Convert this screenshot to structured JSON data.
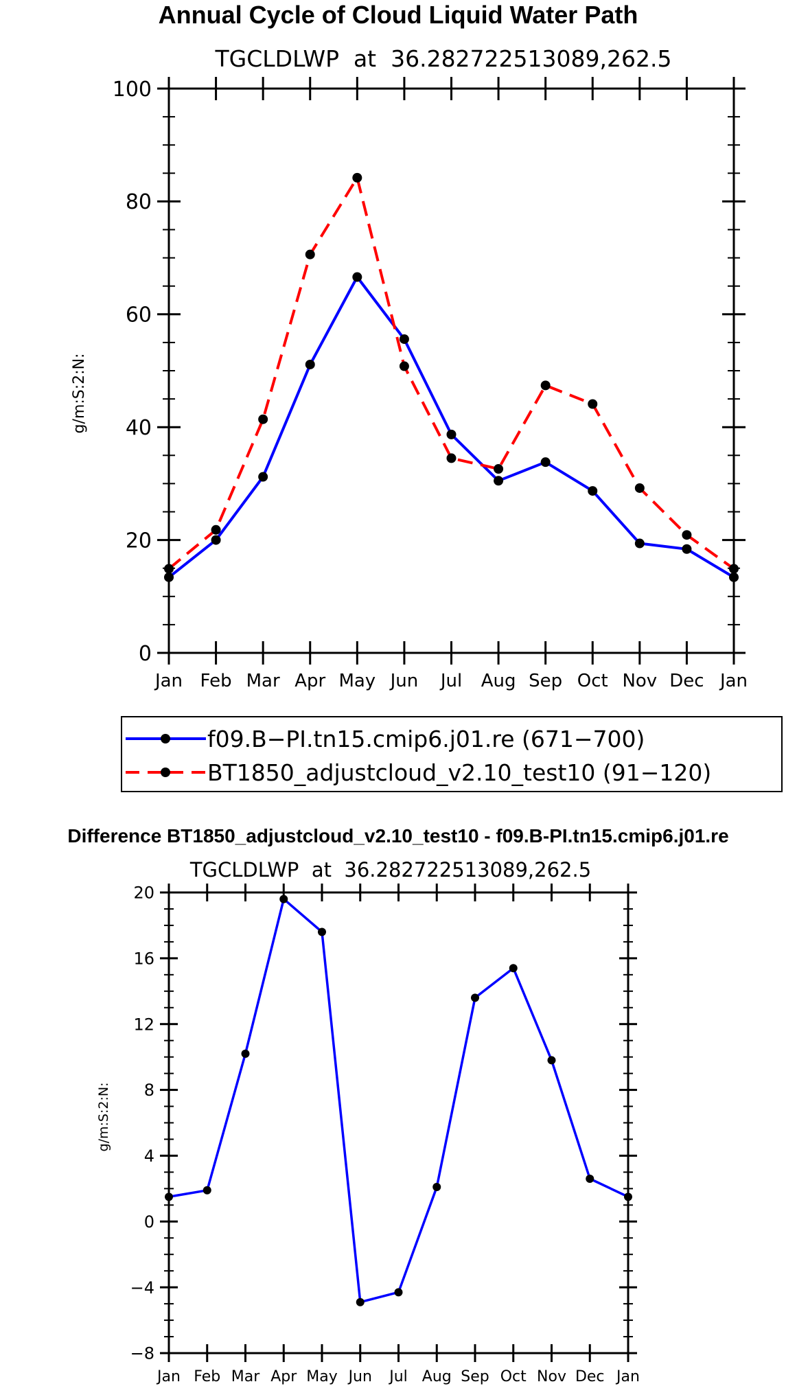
{
  "colors": {
    "series_base": "#0000ff",
    "series_test": "#ff0000",
    "marker": "#000000",
    "axis": "#000000",
    "background": "#ffffff"
  },
  "chart_data": [
    {
      "type": "line",
      "title": "Annual Cycle of Cloud Liquid Water Path",
      "subtitle": "TGCLDLWP  at  36.282722513089,262.5",
      "xlabel": "",
      "ylabel": "g/m:S:2:N:",
      "categories": [
        "Jan",
        "Feb",
        "Mar",
        "Apr",
        "May",
        "Jun",
        "Jul",
        "Aug",
        "Sep",
        "Oct",
        "Nov",
        "Dec",
        "Jan"
      ],
      "ylim": [
        0,
        100
      ],
      "yticks": [
        0,
        20,
        40,
        60,
        80,
        100
      ],
      "ytick_labels": [
        "0",
        "20",
        "40",
        "60",
        "80",
        "100"
      ],
      "series": [
        {
          "name": "f09.B-PI.tn15.cmip6.j01.re",
          "legend_label": "f09.B−PI.tn15.cmip6.j01.re (671−700)",
          "style": "solid",
          "color": "#0000ff",
          "values": [
            13.4,
            20.0,
            31.2,
            51.1,
            66.6,
            55.6,
            38.7,
            30.5,
            33.8,
            28.7,
            19.4,
            18.4,
            13.4
          ]
        },
        {
          "name": "BT1850_adjustcloud_v2.10_test10",
          "legend_label": "BT1850_adjustcloud_v2.10_test10 (91−120)",
          "style": "dashed",
          "color": "#ff0000",
          "values": [
            14.9,
            21.8,
            41.4,
            70.6,
            84.2,
            50.8,
            34.5,
            32.6,
            47.4,
            44.1,
            29.2,
            20.9,
            14.9
          ]
        }
      ]
    },
    {
      "type": "line",
      "title": "Difference BT1850_adjustcloud_v2.10_test10 - f09.B-PI.tn15.cmip6.j01.re",
      "subtitle": "TGCLDLWP  at  36.282722513089,262.5",
      "xlabel": "",
      "ylabel": "g/m:S:2:N:",
      "categories": [
        "Jan",
        "Feb",
        "Mar",
        "Apr",
        "May",
        "Jun",
        "Jul",
        "Aug",
        "Sep",
        "Oct",
        "Nov",
        "Dec",
        "Jan"
      ],
      "ylim": [
        -8,
        20
      ],
      "yticks": [
        -8,
        -4,
        0,
        4,
        8,
        12,
        16,
        20
      ],
      "ytick_labels": [
        "−8",
        "−4",
        "0",
        "4",
        "8",
        "12",
        "16",
        "20"
      ],
      "series": [
        {
          "name": "difference",
          "style": "solid",
          "color": "#0000ff",
          "values": [
            1.5,
            1.9,
            10.2,
            19.6,
            17.6,
            -4.9,
            -4.3,
            2.1,
            13.6,
            15.4,
            9.8,
            2.6,
            1.5
          ]
        }
      ]
    }
  ]
}
